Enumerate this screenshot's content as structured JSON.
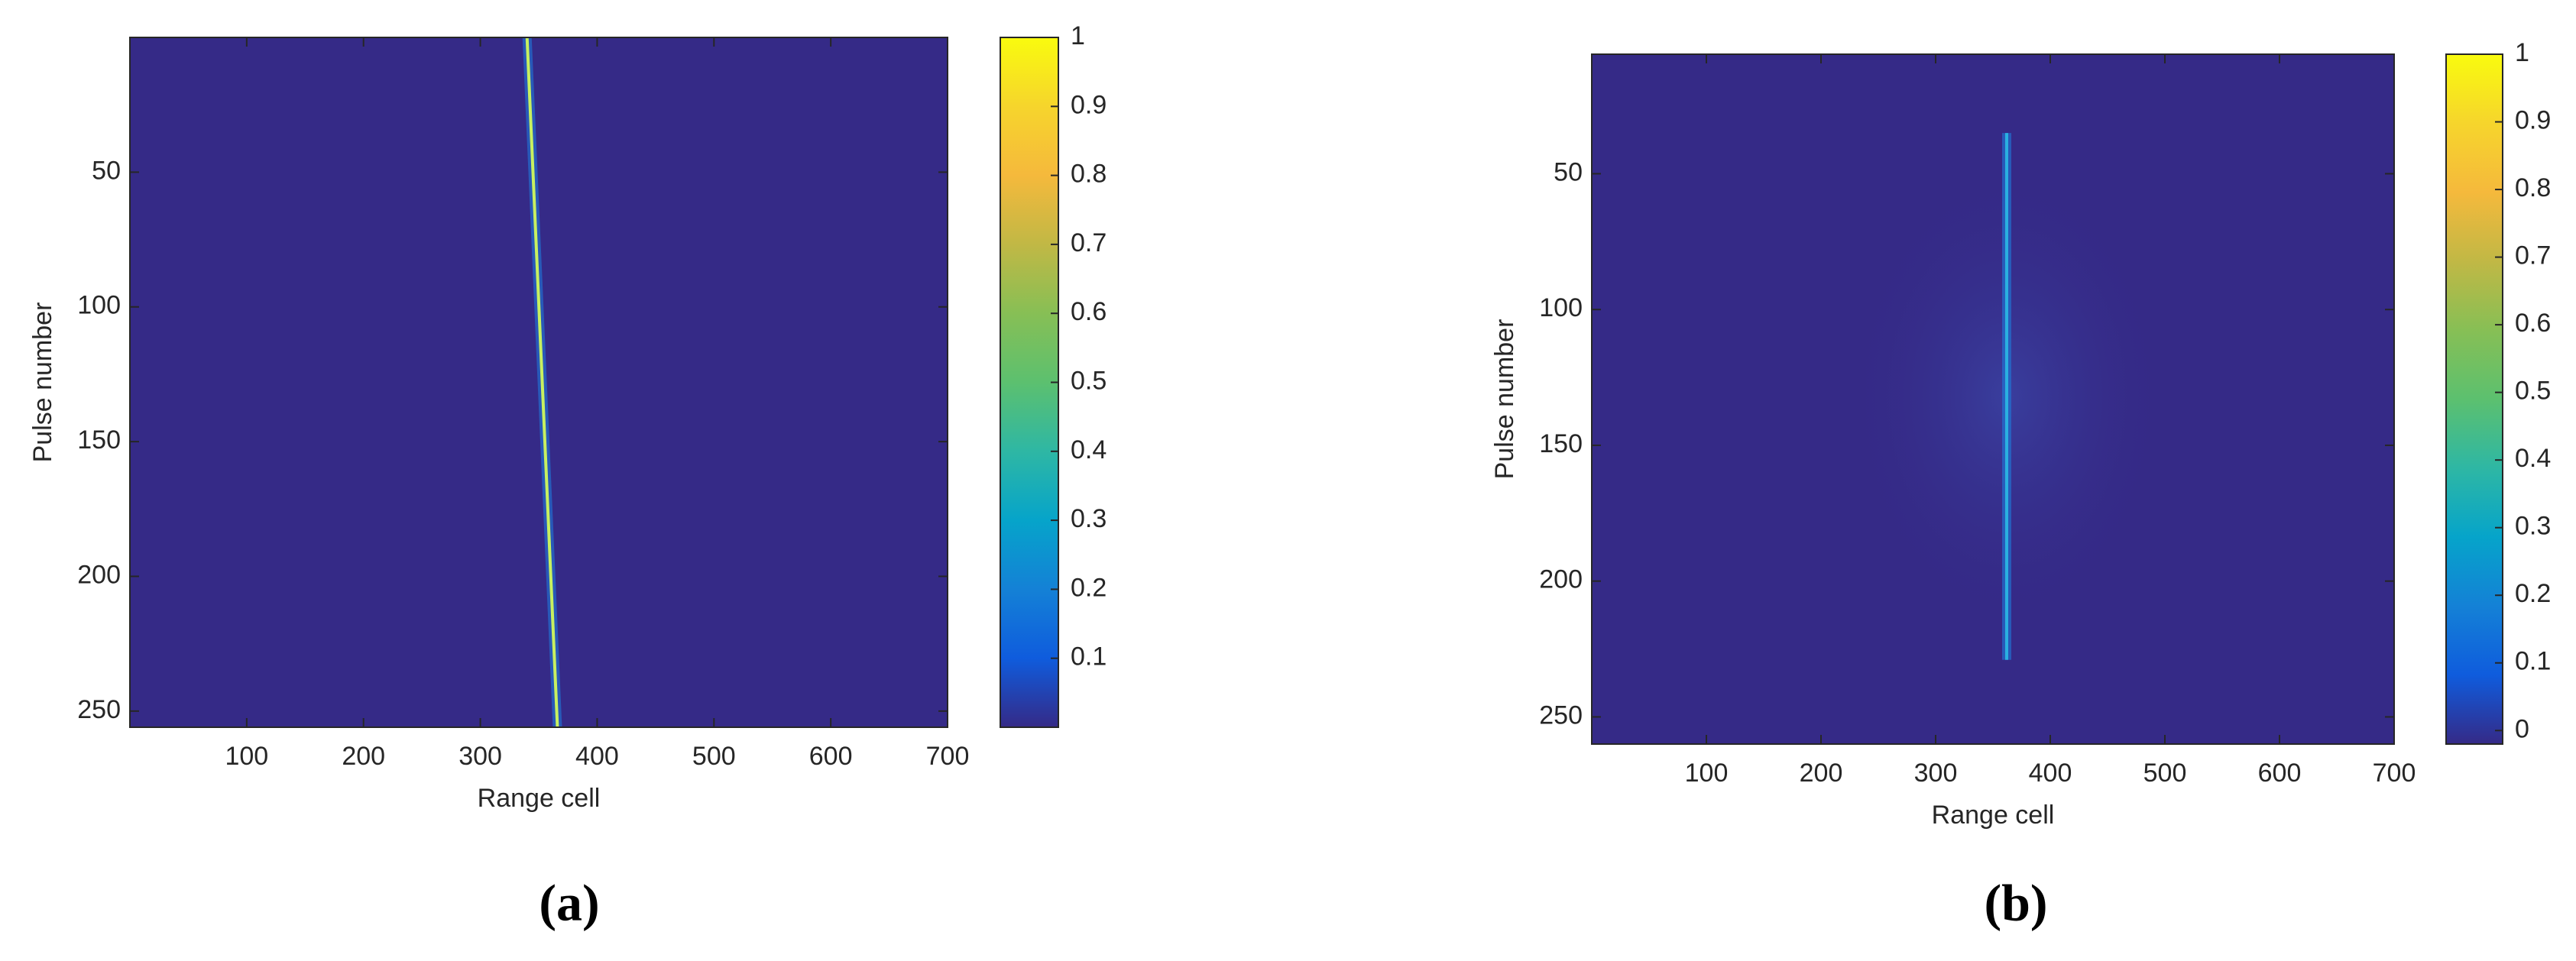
{
  "chart_data": [
    {
      "type": "heatmap",
      "caption": "(a)",
      "xlabel": "Range cell",
      "ylabel": "Pulse number",
      "xlim": [
        0,
        700
      ],
      "ylim": [
        0,
        256
      ],
      "xticks": [
        100,
        200,
        300,
        400,
        500,
        600,
        700
      ],
      "yticks": [
        50,
        100,
        150,
        200,
        250
      ],
      "clim": [
        0,
        1
      ],
      "cticks": [
        0.1,
        0.2,
        0.3,
        0.4,
        0.5,
        0.6,
        0.7,
        0.8,
        0.9,
        1
      ],
      "background": "#352a87",
      "series": [
        {
          "color": "#c8f060",
          "x": [
            340,
            366
          ],
          "values": [
            0,
            256
          ]
        }
      ]
    },
    {
      "type": "heatmap",
      "caption": "(b)",
      "xlabel": "Range cell",
      "ylabel": "Pulse number",
      "xlim": [
        0,
        700
      ],
      "ylim": [
        6,
        260
      ],
      "xticks": [
        100,
        200,
        300,
        400,
        500,
        600,
        700
      ],
      "yticks": [
        50,
        100,
        150,
        200,
        250
      ],
      "clim": [
        -0.02,
        1
      ],
      "cticks": [
        0,
        0.1,
        0.2,
        0.3,
        0.4,
        0.5,
        0.6,
        0.7,
        0.8,
        0.9,
        1
      ],
      "background": "#352a87",
      "series": [
        {
          "color": "#2ab0e0",
          "x": [
            362,
            362
          ],
          "values": [
            35,
            229
          ]
        }
      ]
    }
  ]
}
